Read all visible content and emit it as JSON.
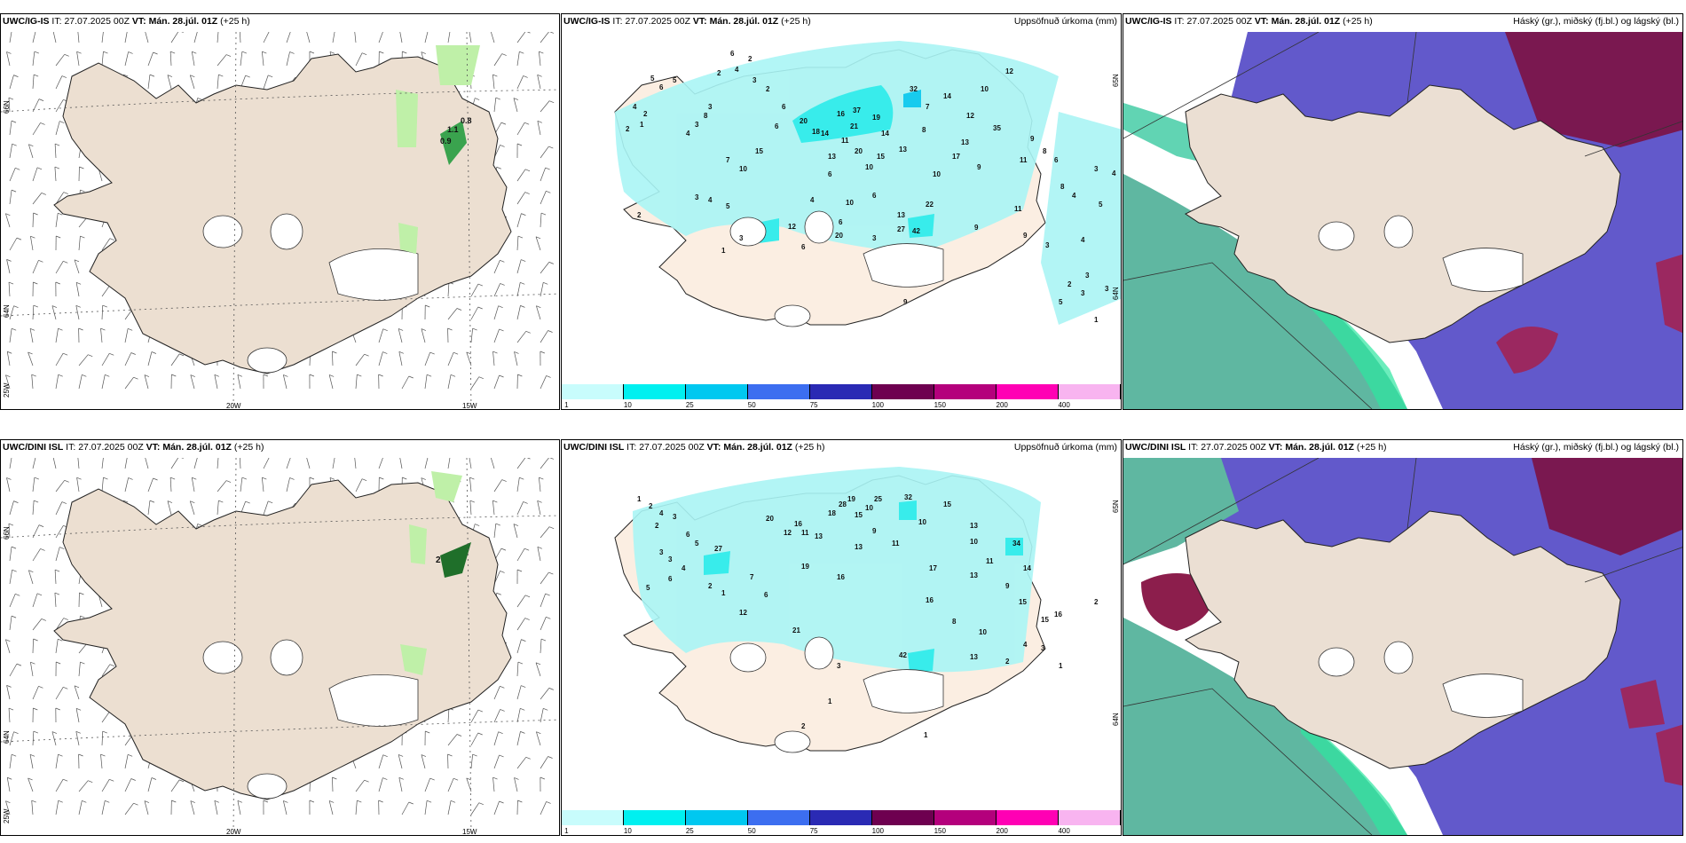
{
  "rows": [
    {
      "model": "UWC/IG-IS",
      "it_label": "IT:",
      "it_value": "27.07.2025 00Z",
      "vt_label": "VT:",
      "vt_value": "Mán. 28.júl. 01Z",
      "lead": "(+25 h)"
    },
    {
      "model": "UWC/DINI ISL",
      "it_label": "IT:",
      "it_value": "27.07.2025 00Z",
      "vt_label": "VT:",
      "vt_value": "Mán. 28.júl. 01Z",
      "lead": "(+25 h)"
    }
  ],
  "panel_titles": {
    "precip": "Uppsöfnuð úrkoma (mm)",
    "cloud": "Háský (gr.), miðský (fj.bl.) og lágský (bl.)"
  },
  "wind_axes": {
    "lon_labels": [
      "20W",
      "15W"
    ],
    "lat_labels": [
      "66N",
      "64N",
      "25W"
    ]
  },
  "precip_right_lat_labels": [
    "65N",
    "64N"
  ],
  "wind_precip_values": {
    "top": [
      "0.8",
      "1.1",
      "0.9"
    ],
    "bottom": [
      "2"
    ]
  },
  "colorbar": {
    "labels": [
      "1",
      "10",
      "25",
      "50",
      "75",
      "100",
      "150",
      "200",
      "400"
    ],
    "colors": [
      "#c8fcfc",
      "#00f0f0",
      "#00c8f0",
      "#3c6ef0",
      "#2a2ab4",
      "#6e0050",
      "#b4007c",
      "#ff00b4",
      "#f8b4f0"
    ]
  },
  "precip_labels": {
    "top": [
      "6",
      "2",
      "4",
      "2",
      "3",
      "2",
      "6",
      "5",
      "6",
      "5",
      "4",
      "2",
      "1",
      "2",
      "4",
      "3",
      "8",
      "3",
      "7",
      "10",
      "15",
      "6",
      "20",
      "18",
      "13",
      "14",
      "16",
      "37",
      "19",
      "21",
      "11",
      "14",
      "32",
      "7",
      "8",
      "14",
      "12",
      "13",
      "20",
      "15",
      "13",
      "10",
      "6",
      "10",
      "17",
      "12",
      "10",
      "9",
      "35",
      "11",
      "9",
      "8",
      "6",
      "8",
      "4",
      "3",
      "22",
      "13",
      "11",
      "9",
      "6",
      "10",
      "6",
      "4",
      "12",
      "9",
      "3",
      "4",
      "20",
      "27",
      "42",
      "3",
      "6",
      "3",
      "4",
      "5",
      "2",
      "3",
      "1",
      "4",
      "5",
      "3",
      "2",
      "1",
      "9",
      "3",
      "5",
      "3"
    ],
    "bottom": [
      "1",
      "2",
      "4",
      "3",
      "2",
      "6",
      "5",
      "3",
      "3",
      "4",
      "2",
      "1",
      "6",
      "5",
      "20",
      "27",
      "12",
      "16",
      "11",
      "13",
      "18",
      "28",
      "19",
      "10",
      "15",
      "25",
      "32",
      "15",
      "13",
      "10",
      "9",
      "11",
      "13",
      "34",
      "14",
      "10",
      "16",
      "17",
      "19",
      "16",
      "13",
      "11",
      "9",
      "15",
      "21",
      "42",
      "6",
      "12",
      "7",
      "8",
      "10",
      "15",
      "13",
      "16",
      "3",
      "4",
      "2",
      "1",
      "2",
      "3",
      "1",
      "1",
      "2"
    ]
  }
}
